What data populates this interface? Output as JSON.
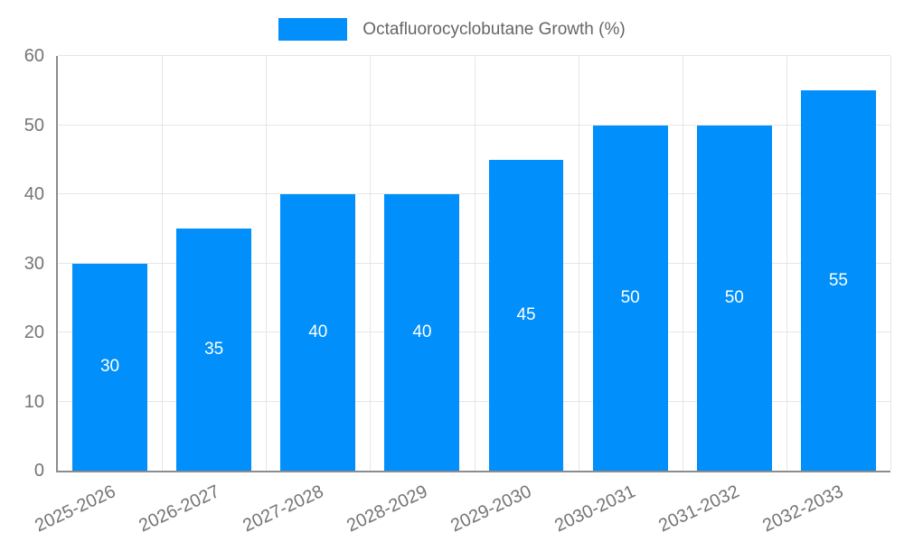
{
  "chart_data": {
    "type": "bar",
    "title": "Octafluorocyclobutane Growth (%)",
    "categories": [
      "2025-2026",
      "2026-2027",
      "2027-2028",
      "2028-2029",
      "2029-2030",
      "2030-2031",
      "2031-2032",
      "2032-2033"
    ],
    "values": [
      30,
      35,
      40,
      40,
      45,
      50,
      50,
      55
    ],
    "series": [
      {
        "name": "Octafluorocyclobutane Growth (%)",
        "values": [
          30,
          35,
          40,
          40,
          45,
          50,
          50,
          55
        ]
      }
    ],
    "xlabel": "",
    "ylabel": "",
    "ylim": [
      0,
      60
    ],
    "yticks": [
      0,
      10,
      20,
      30,
      40,
      50,
      60
    ],
    "grid": true,
    "legend_position": "top",
    "x_label_rotation": -25,
    "data_labels": true
  },
  "colors": {
    "bar": "#008ffb",
    "grid": "#e6e6e6",
    "axis": "#8c8c8c",
    "tick_text": "#757575",
    "legend_text": "#666666",
    "data_label": "#ffffff",
    "background": "#ffffff"
  }
}
